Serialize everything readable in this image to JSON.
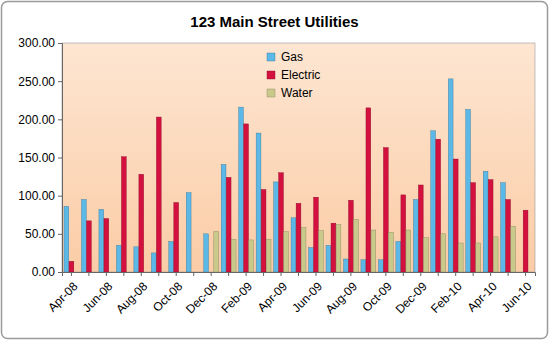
{
  "chart_data": {
    "type": "bar",
    "title": "123 Main Street Utilities",
    "categories": [
      "Apr-08",
      null,
      "Jun-08",
      null,
      "Aug-08",
      null,
      "Oct-08",
      null,
      "Dec-08",
      null,
      "Feb-09",
      null,
      "Apr-09",
      null,
      "Jun-09",
      null,
      "Aug-09",
      null,
      "Oct-09",
      null,
      "Dec-09",
      null,
      "Feb-10",
      null,
      "Apr-10",
      null,
      "Jun-10"
    ],
    "series": [
      {
        "name": "Gas",
        "color": "#5cb8e6",
        "values": [
          86,
          95,
          82,
          35,
          33,
          25,
          40,
          104,
          50,
          141,
          216,
          182,
          118,
          71,
          32,
          35,
          17,
          16,
          16,
          40,
          95,
          185,
          253,
          213,
          132,
          117,
          null
        ]
      },
      {
        "name": "Electric",
        "color": "#d4103f",
        "values": [
          14,
          67,
          70,
          151,
          128,
          203,
          91,
          null,
          null,
          124,
          194,
          108,
          130,
          90,
          98,
          64,
          94,
          215,
          163,
          101,
          114,
          174,
          148,
          117,
          121,
          95,
          81
        ]
      },
      {
        "name": "Water",
        "color": "#c9c98b",
        "values": [
          null,
          null,
          null,
          null,
          null,
          null,
          null,
          null,
          53,
          43,
          42,
          43,
          53,
          58,
          54,
          62,
          69,
          55,
          52,
          55,
          45,
          50,
          38,
          38,
          46,
          60,
          null
        ]
      }
    ],
    "ylim": [
      0,
      300
    ],
    "yticks": [
      {
        "value": 0,
        "label": "0.00"
      },
      {
        "value": 50,
        "label": "50.00"
      },
      {
        "value": 100,
        "label": "100.00"
      },
      {
        "value": 150,
        "label": "150.00"
      },
      {
        "value": 200,
        "label": "200.00"
      },
      {
        "value": 250,
        "label": "250.00"
      },
      {
        "value": 300,
        "label": "300.00"
      }
    ],
    "grid": false,
    "legend": "top"
  }
}
